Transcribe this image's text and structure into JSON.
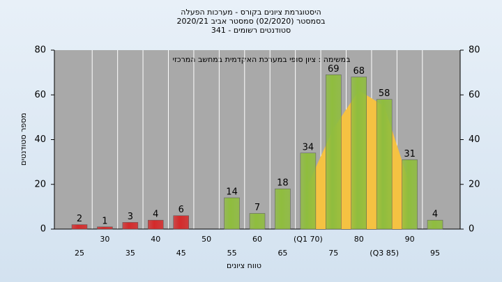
{
  "chart_data": {
    "type": "bar",
    "title": [
      "היסטוגרמת ציונים בקורס - מערכות הפעלה",
      "בסמסטר  (02/2020)  סמסטר אביב 2020/21",
      "סטודנטים רשומים - 341"
    ],
    "annotation": "במשימה : ציון סופי במערכת האקדמית במחשב המרכזי",
    "x_label": "טווח ציונים",
    "y_label": "מספר סטודנטים",
    "categories": [
      "25",
      "30",
      "35",
      "40",
      "45",
      "50",
      "55",
      "60",
      "65",
      "(Q1 70)",
      "75",
      "80",
      "(Q3 85)",
      "90",
      "95"
    ],
    "series": [
      {
        "values": [
          2,
          1,
          3,
          4,
          6,
          null,
          14,
          7,
          18,
          34,
          69,
          68,
          58,
          31,
          4
        ],
        "colors": [
          "#d42a2a",
          "#d42a2a",
          "#d42a2a",
          "#d42a2a",
          "#d42a2a",
          "#d42a2a",
          "#8fbd3e",
          "#8fbd3e",
          "#8fbd3e",
          "#8fbd3e",
          "#8fbd3e",
          "#8fbd3e",
          "#8fbd3e",
          "#8fbd3e",
          "#8fbd3e"
        ]
      },
      {
        "type": "area",
        "color": "#f5c242",
        "values": [
          null,
          null,
          null,
          null,
          null,
          null,
          null,
          null,
          null,
          20,
          45,
          62,
          55,
          20,
          null
        ]
      }
    ],
    "ylim": [
      0,
      80
    ],
    "yticks": [
      0,
      20,
      40,
      60,
      80
    ],
    "grid": true
  }
}
